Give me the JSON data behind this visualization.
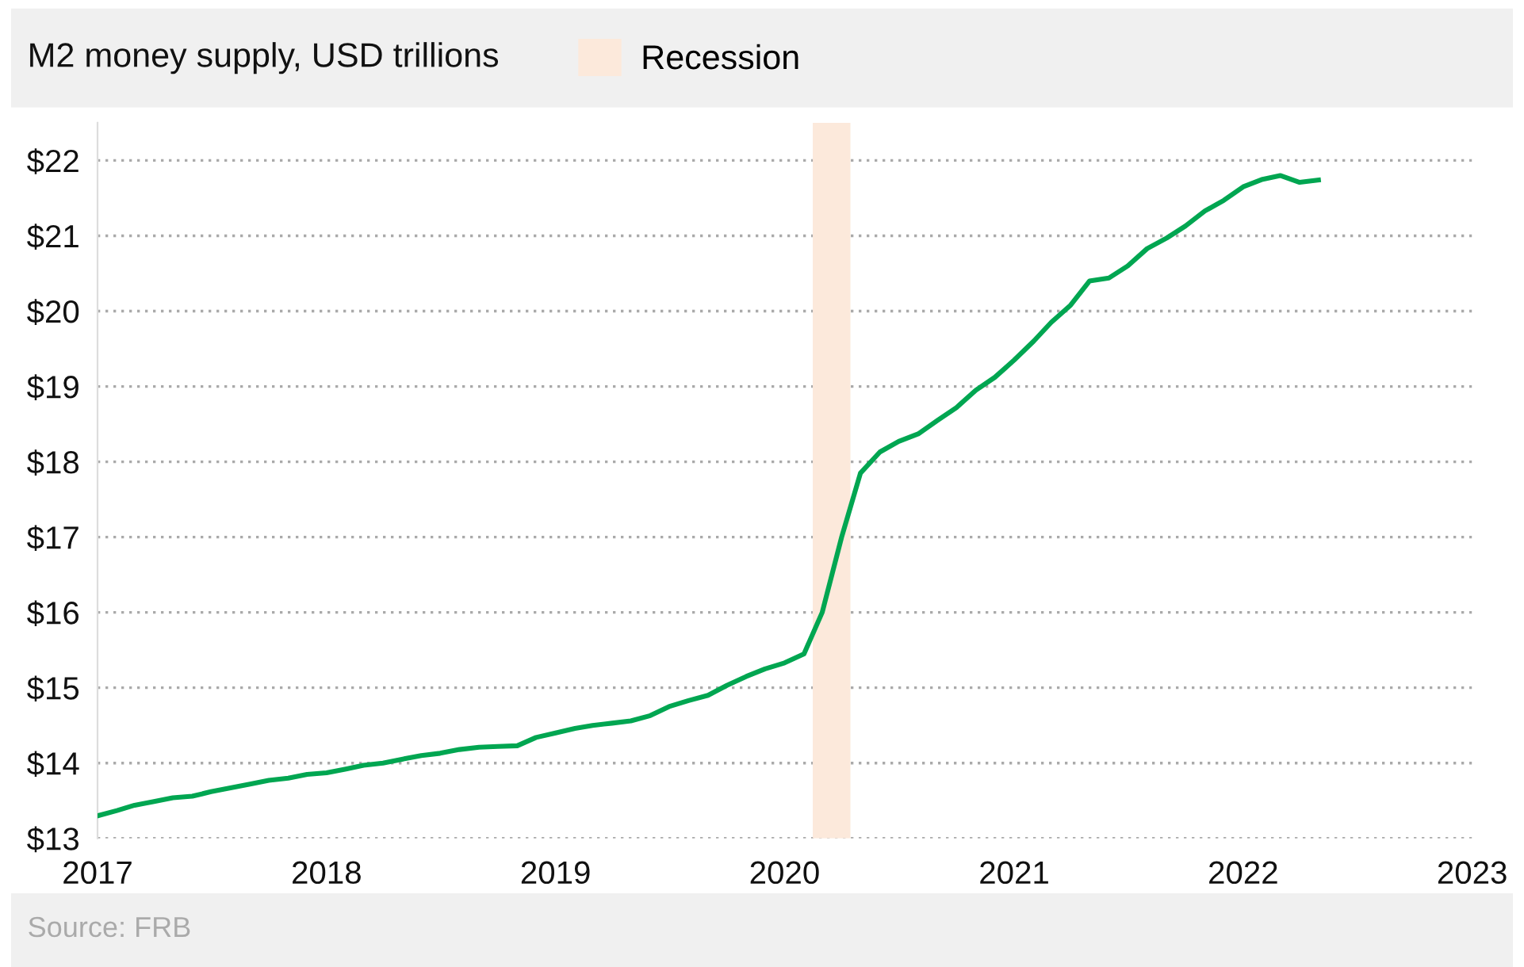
{
  "chart_data": {
    "type": "line",
    "title": "M2 money supply, USD trillions",
    "annotations": [
      "Source: FRB"
    ],
    "x": [
      "2017-01",
      "2017-02",
      "2017-03",
      "2017-04",
      "2017-05",
      "2017-06",
      "2017-07",
      "2017-08",
      "2017-09",
      "2017-10",
      "2017-11",
      "2017-12",
      "2018-01",
      "2018-02",
      "2018-03",
      "2018-04",
      "2018-05",
      "2018-06",
      "2018-07",
      "2018-08",
      "2018-09",
      "2018-10",
      "2018-11",
      "2018-12",
      "2019-01",
      "2019-02",
      "2019-03",
      "2019-04",
      "2019-05",
      "2019-06",
      "2019-07",
      "2019-08",
      "2019-09",
      "2019-10",
      "2019-11",
      "2019-12",
      "2020-01",
      "2020-02",
      "2020-03",
      "2020-04",
      "2020-05",
      "2020-06",
      "2020-07",
      "2020-08",
      "2020-09",
      "2020-10",
      "2020-11",
      "2020-12",
      "2021-01",
      "2021-02",
      "2021-03",
      "2021-04",
      "2021-05",
      "2021-06",
      "2021-07",
      "2021-08",
      "2021-09",
      "2021-10",
      "2021-11",
      "2021-12",
      "2022-01",
      "2022-02",
      "2022-03",
      "2022-04",
      "2022-05"
    ],
    "series": [
      {
        "color": "#00a651",
        "values": [
          13.3,
          13.37,
          13.44,
          13.49,
          13.54,
          13.56,
          13.62,
          13.67,
          13.72,
          13.77,
          13.8,
          13.85,
          13.87,
          13.92,
          13.97,
          14.0,
          14.05,
          14.1,
          14.13,
          14.18,
          14.21,
          14.22,
          14.23,
          14.34,
          14.4,
          14.46,
          14.5,
          14.53,
          14.56,
          14.63,
          14.75,
          14.83,
          14.9,
          15.03,
          15.15,
          15.25,
          15.33,
          15.45,
          16.0,
          17.0,
          17.85,
          18.13,
          18.27,
          18.37,
          18.55,
          18.72,
          18.95,
          19.12,
          19.35,
          19.6,
          19.85,
          20.08,
          20.4,
          20.44,
          20.6,
          20.83,
          20.97,
          21.13,
          21.33,
          21.47,
          21.65,
          21.75,
          21.8,
          21.71,
          21.74
        ]
      }
    ],
    "bands": [
      {
        "axis": "x",
        "from": "2020-02-15",
        "to": "2020-04-15",
        "label": "Recession",
        "color": "#fce9db"
      }
    ],
    "xlim": [
      "2017",
      "2023"
    ],
    "xticks": [
      "2017",
      "2018",
      "2019",
      "2020",
      "2021",
      "2022",
      "2023"
    ],
    "ylim": [
      13,
      22.5
    ],
    "yticks": [
      {
        "value": 13,
        "label": "$13"
      },
      {
        "value": 14,
        "label": "$14"
      },
      {
        "value": 15,
        "label": "$15"
      },
      {
        "value": 16,
        "label": "$16"
      },
      {
        "value": 17,
        "label": "$17"
      },
      {
        "value": 18,
        "label": "$18"
      },
      {
        "value": 19,
        "label": "$19"
      },
      {
        "value": 20,
        "label": "$20"
      },
      {
        "value": 21,
        "label": "$21"
      },
      {
        "value": 22,
        "label": "$22"
      }
    ],
    "grid": "y",
    "legend": "top",
    "marker": "none",
    "line_style": "solid"
  }
}
